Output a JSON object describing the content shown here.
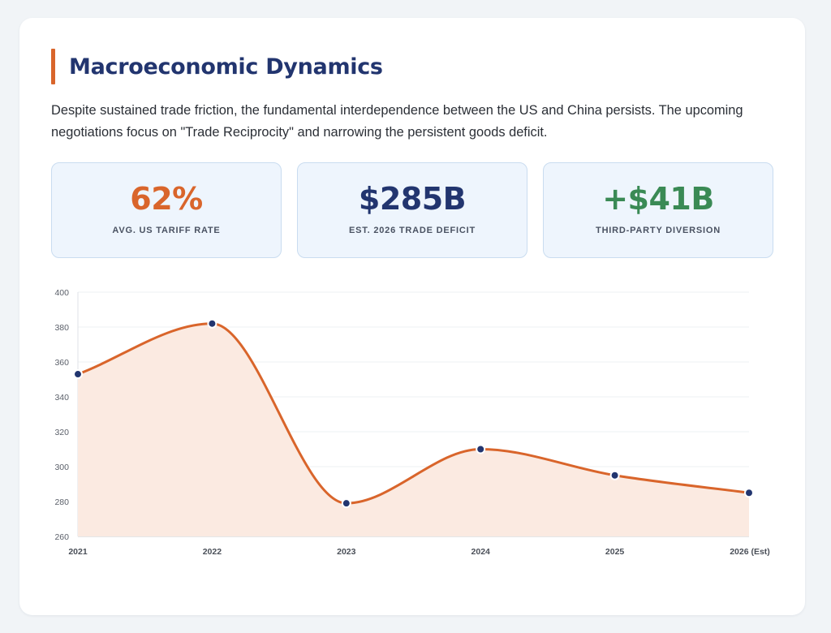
{
  "header": {
    "title": "Macroeconomic Dynamics",
    "description": "Despite sustained trade friction, the fundamental interdependence between the US and China persists. The upcoming negotiations focus on \"Trade Reciprocity\" and narrowing the persistent goods deficit."
  },
  "stats": [
    {
      "value": "62%",
      "label": "AVG. US TARIFF RATE",
      "color": "#d9652b"
    },
    {
      "value": "$285B",
      "label": "EST. 2026 TRADE DEFICIT",
      "color": "#22356f"
    },
    {
      "value": "+$41B",
      "label": "THIRD-PARTY DIVERSION",
      "color": "#3a8a55"
    }
  ],
  "colors": {
    "accent": "#d9652b",
    "navy": "#22356f",
    "green": "#3a8a55",
    "line": "#d9652b",
    "fill": "#fbeae1",
    "point": "#22356f"
  },
  "chart_data": {
    "type": "area",
    "categories": [
      "2021",
      "2022",
      "2023",
      "2024",
      "2025",
      "2026 (Est)"
    ],
    "series": [
      {
        "values": [
          353,
          382,
          279,
          310,
          295,
          285
        ]
      }
    ],
    "title": "",
    "xlabel": "",
    "ylabel": "",
    "ylim": [
      260,
      400
    ],
    "yticks": [
      260,
      280,
      300,
      320,
      340,
      360,
      380,
      400
    ],
    "grid": true,
    "legend": "none"
  }
}
